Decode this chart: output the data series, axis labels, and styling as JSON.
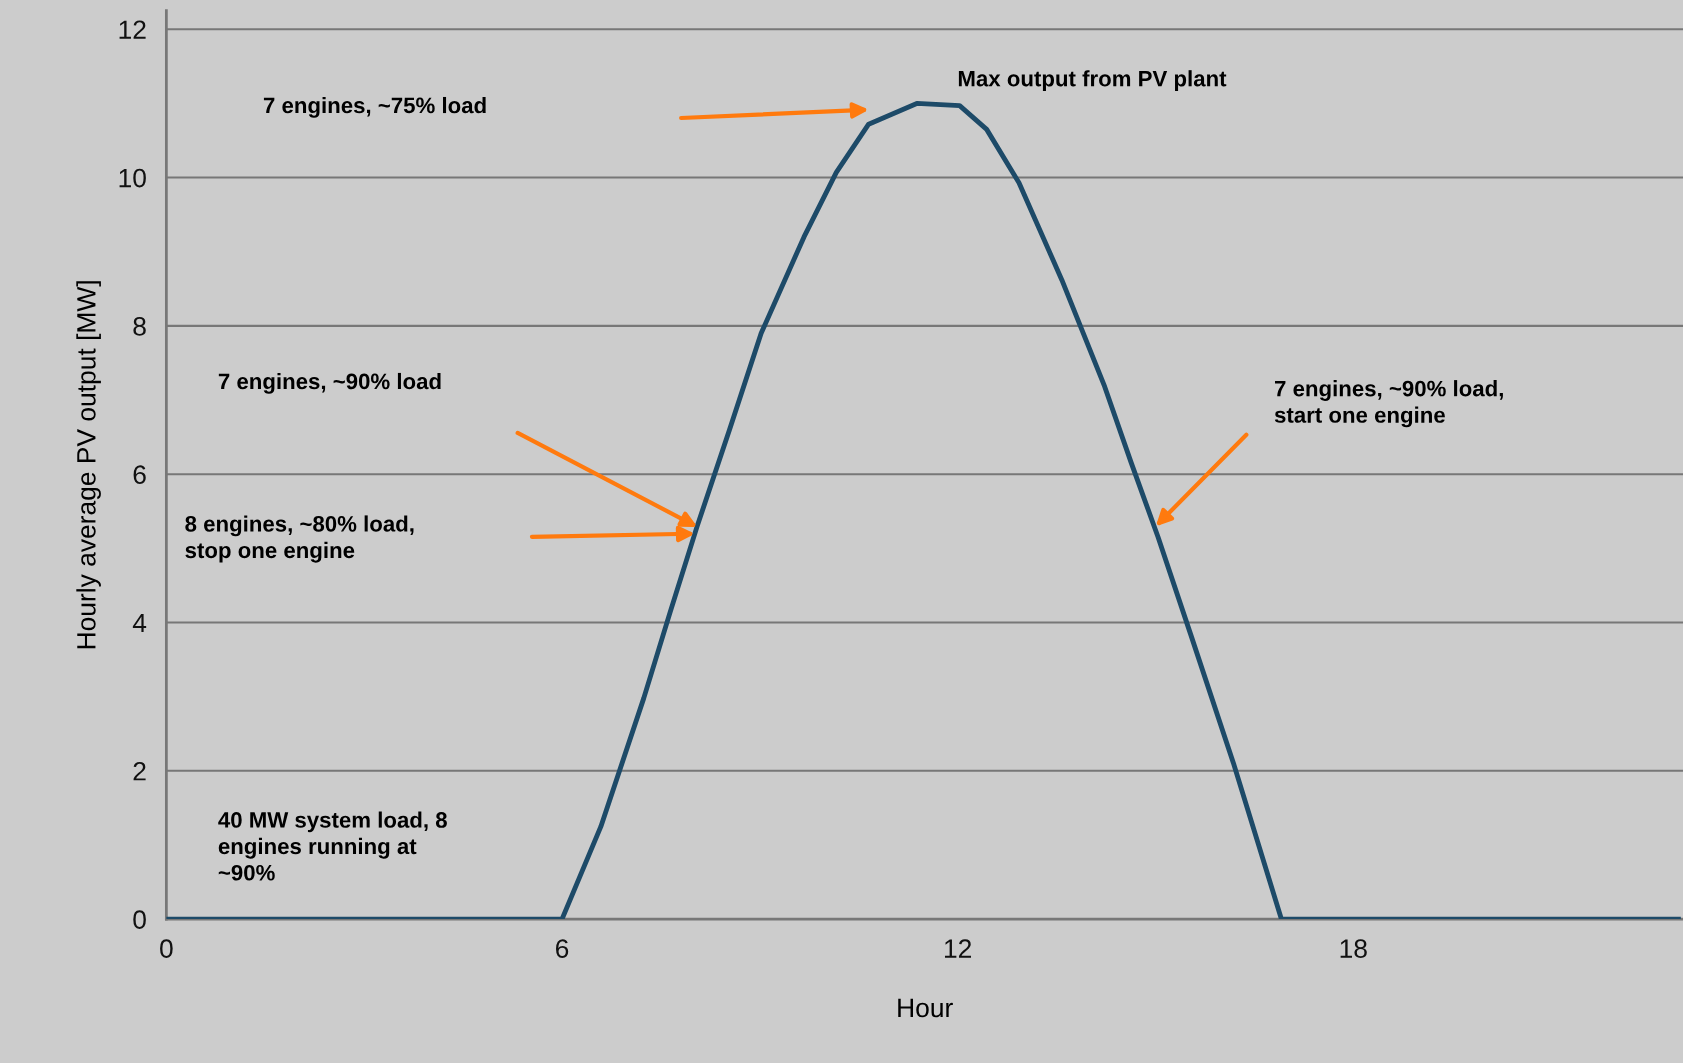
{
  "chart_data": {
    "type": "line",
    "xlabel": "Hour",
    "ylabel": "Hourly average PV output [MW]",
    "xlim": [
      0,
      23
    ],
    "xticks": [
      0,
      6,
      12,
      18
    ],
    "ylim": [
      0,
      12.25
    ],
    "yticks": [
      0,
      2,
      4,
      6,
      8,
      10,
      12
    ],
    "grid": "y",
    "legend": false,
    "marker": "none",
    "line_style": "solid",
    "series": [
      {
        "color": "#1d4a68",
        "x": [
          0,
          6,
          6.59,
          7.24,
          7.64,
          8.05,
          8.54,
          9.02,
          9.67,
          10.16,
          10.65,
          11.38,
          12.03,
          12.44,
          12.93,
          13.58,
          14.23,
          14.63,
          15.04,
          15.53,
          16.18,
          16.91,
          22.93
        ],
        "values": [
          0,
          0,
          1.25,
          2.98,
          4.14,
          5.3,
          6.6,
          7.9,
          9.2,
          10.07,
          10.72,
          11.0,
          10.97,
          10.65,
          9.93,
          8.62,
          7.18,
          6.16,
          5.15,
          3.85,
          2.11,
          0,
          0
        ]
      }
    ],
    "annotations": [
      "7 engines, ~75% load",
      "Max output from PV plant",
      "7 engines, ~90% load",
      "8 engines, ~80% load,\nstop one engine",
      "7 engines, ~90% load,\nstart one engine",
      "40 MW system load, 8\nengines running at\n~90%"
    ]
  }
}
